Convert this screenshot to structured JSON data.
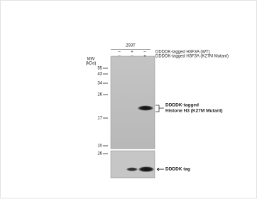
{
  "cell_line": "293T",
  "conditions": [
    {
      "signs": [
        "–",
        "+",
        "–"
      ],
      "label": "DDDDK-tagged H3F3A (WT)"
    },
    {
      "signs": [
        "–",
        "–",
        "+"
      ],
      "label": "DDDDK-tagged H3F3A (K27M Mutant)"
    }
  ],
  "mw_label": [
    "MW",
    "(kDa)"
  ],
  "markers_top": [
    "55",
    "43",
    "34",
    "26",
    "17",
    "10"
  ],
  "markers_bottom": [
    "26"
  ],
  "annotations": {
    "top": [
      "DDDDK-tagged",
      "Histone H3 (K27M Mutant)"
    ],
    "bottom": "DDDDK tag"
  }
}
